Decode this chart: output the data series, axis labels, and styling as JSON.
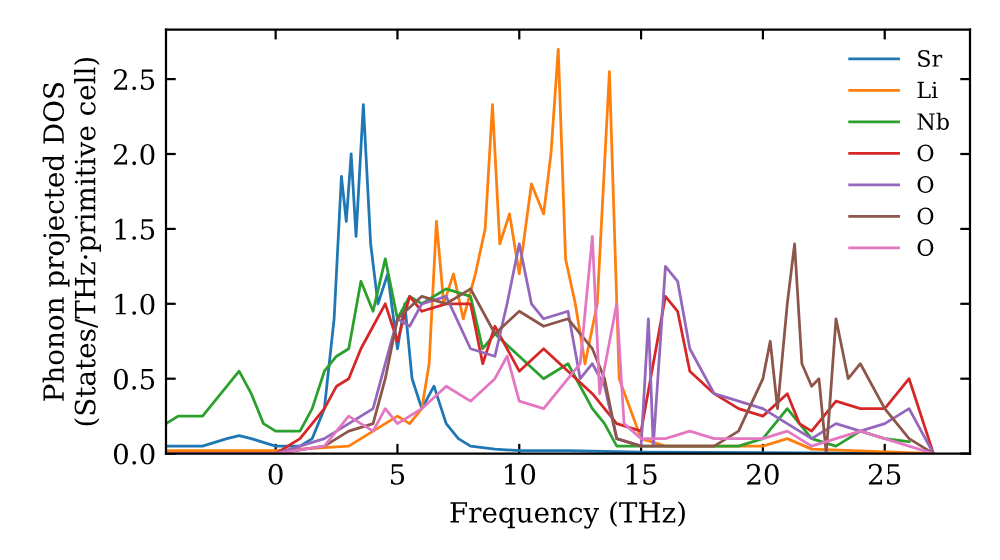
{
  "chart_data": {
    "type": "line",
    "xlabel": "Frequency (THz)",
    "ylabel": "Phonon projected DOS\n(States/THz·primitive cell)",
    "xlim": [
      -4.5,
      28.5
    ],
    "ylim": [
      0,
      2.83
    ],
    "xticks": [
      0,
      5,
      10,
      15,
      20,
      25
    ],
    "yticks": [
      {
        "value": 0,
        "label": "0.0"
      },
      {
        "value": 0.5,
        "label": "0.5"
      },
      {
        "value": 1,
        "label": "1.0"
      },
      {
        "value": 1.5,
        "label": "1.5"
      },
      {
        "value": 2,
        "label": "2.0"
      },
      {
        "value": 2.5,
        "label": "2.5"
      }
    ],
    "legend": "top right",
    "grid": false,
    "marker": "none",
    "line_style": "solid",
    "series": [
      {
        "name": "Sr",
        "color": "#1f77b4",
        "x": [
          -4.5,
          -3,
          -2,
          -1.5,
          -1,
          0,
          1,
          1.5,
          2,
          2.4,
          2.7,
          2.9,
          3.1,
          3.3,
          3.6,
          3.9,
          4.2,
          4.6,
          5,
          5.3,
          5.6,
          6,
          6.5,
          7,
          7.5,
          8,
          9,
          10,
          12,
          15,
          27
        ],
        "values": [
          0.05,
          0.05,
          0.1,
          0.12,
          0.1,
          0.05,
          0.05,
          0.1,
          0.3,
          0.9,
          1.85,
          1.55,
          2.0,
          1.45,
          2.33,
          1.4,
          1.0,
          1.2,
          0.7,
          1.0,
          0.5,
          0.3,
          0.45,
          0.2,
          0.1,
          0.05,
          0.03,
          0.02,
          0.02,
          0.01,
          0
        ]
      },
      {
        "name": "Li",
        "color": "#ff7f0e",
        "x": [
          -4.5,
          0,
          3,
          4,
          5,
          5.5,
          6,
          6.3,
          6.6,
          6.9,
          7.3,
          7.7,
          8.2,
          8.6,
          8.9,
          9.2,
          9.6,
          10,
          10.5,
          11,
          11.3,
          11.6,
          11.9,
          12.3,
          12.7,
          13.2,
          13.7,
          14.1,
          15,
          16,
          20,
          21,
          22,
          27
        ],
        "values": [
          0.02,
          0.02,
          0.05,
          0.15,
          0.25,
          0.2,
          0.3,
          0.6,
          1.55,
          1.0,
          1.2,
          0.9,
          1.2,
          1.5,
          2.33,
          1.4,
          1.6,
          1.2,
          1.8,
          1.6,
          2.0,
          2.7,
          1.3,
          1.0,
          0.6,
          1.0,
          2.55,
          0.5,
          0.1,
          0.05,
          0.05,
          0.1,
          0.03,
          0
        ]
      },
      {
        "name": "Nb",
        "color": "#2ca02c",
        "x": [
          -4.5,
          -4,
          -3,
          -2.5,
          -2,
          -1.5,
          -1,
          -0.5,
          0,
          1,
          1.5,
          2,
          2.5,
          3,
          3.5,
          4,
          4.5,
          5,
          5.5,
          6,
          7,
          8,
          8.5,
          9,
          10,
          11,
          12,
          13,
          13.5,
          14,
          15,
          19,
          20,
          21,
          22,
          23,
          24,
          25,
          26
        ],
        "values": [
          0.2,
          0.25,
          0.25,
          0.35,
          0.45,
          0.55,
          0.4,
          0.2,
          0.15,
          0.15,
          0.3,
          0.55,
          0.65,
          0.7,
          1.15,
          0.95,
          1.3,
          0.9,
          1.05,
          1.0,
          1.1,
          1.05,
          0.7,
          0.8,
          0.65,
          0.5,
          0.6,
          0.3,
          0.2,
          0.05,
          0.05,
          0.05,
          0.1,
          0.3,
          0.1,
          0.05,
          0.15,
          0.1,
          0.08
        ]
      },
      {
        "name": "O",
        "color": "#d62728",
        "x": [
          -4.5,
          0,
          1,
          2,
          2.5,
          3,
          3.5,
          4,
          4.5,
          5,
          5.5,
          6,
          7,
          8,
          8.5,
          9,
          10,
          11,
          12,
          13,
          14,
          15,
          16,
          16.5,
          17,
          18,
          19,
          20,
          21,
          21.5,
          22,
          23,
          24,
          25,
          26,
          27
        ],
        "values": [
          0,
          0,
          0.1,
          0.3,
          0.45,
          0.5,
          0.7,
          0.85,
          1.0,
          0.75,
          1.05,
          0.95,
          1.0,
          1.0,
          0.6,
          0.85,
          0.55,
          0.7,
          0.55,
          0.4,
          0.2,
          0.15,
          1.05,
          0.95,
          0.55,
          0.4,
          0.3,
          0.25,
          0.4,
          0.2,
          0.15,
          0.35,
          0.3,
          0.3,
          0.5,
          0
        ]
      },
      {
        "name": "O",
        "color": "#9467bd",
        "x": [
          -4.5,
          0,
          2,
          3,
          4,
          4.5,
          5,
          5.5,
          6,
          7,
          8,
          9,
          9.5,
          10,
          10.5,
          11,
          12,
          12.5,
          13,
          13.5,
          14,
          15,
          15.3,
          15.5,
          16,
          16.5,
          17,
          18,
          19,
          20,
          21,
          22,
          23,
          24,
          25,
          26,
          27
        ],
        "values": [
          0,
          0,
          0.1,
          0.2,
          0.3,
          0.6,
          0.9,
          0.85,
          1.0,
          1.05,
          0.7,
          0.65,
          1.0,
          1.4,
          1.0,
          0.9,
          0.95,
          0.5,
          0.6,
          0.45,
          0.1,
          0.05,
          0.9,
          0.05,
          1.25,
          1.15,
          0.7,
          0.4,
          0.35,
          0.3,
          0.2,
          0.1,
          0.2,
          0.15,
          0.2,
          0.3,
          0
        ]
      },
      {
        "name": "O",
        "color": "#8c564b",
        "x": [
          -4.5,
          0,
          2,
          3,
          4,
          4.5,
          5,
          6,
          7,
          8,
          9,
          10,
          11,
          12,
          13,
          13.5,
          14,
          15,
          16,
          18,
          19,
          20,
          20.3,
          20.6,
          21,
          21.3,
          21.6,
          22,
          22.3,
          22.6,
          23,
          23.5,
          24,
          25,
          26,
          27
        ],
        "values": [
          0,
          0,
          0.05,
          0.15,
          0.2,
          0.5,
          0.9,
          1.05,
          1.0,
          1.1,
          0.8,
          0.95,
          0.85,
          0.9,
          0.7,
          0.5,
          0.1,
          0.05,
          0.05,
          0.05,
          0.15,
          0.5,
          0.75,
          0.3,
          1.0,
          1.4,
          0.6,
          0.45,
          0.5,
          0.0,
          0.9,
          0.5,
          0.6,
          0.3,
          0.1,
          0
        ]
      },
      {
        "name": "O",
        "color": "#e377c2",
        "x": [
          -4.5,
          0,
          2,
          3,
          4,
          4.5,
          5,
          6,
          7,
          8,
          9,
          9.5,
          10,
          11,
          12,
          12.5,
          13,
          13.3,
          14,
          14.3,
          15,
          16,
          17,
          18,
          20,
          21,
          22,
          23,
          24,
          25,
          26,
          27
        ],
        "values": [
          0,
          0,
          0.05,
          0.25,
          0.15,
          0.3,
          0.2,
          0.3,
          0.45,
          0.35,
          0.5,
          0.65,
          0.35,
          0.3,
          0.5,
          0.6,
          1.45,
          0.4,
          1.0,
          0.2,
          0.1,
          0.1,
          0.15,
          0.1,
          0.1,
          0.15,
          0.05,
          0.1,
          0.15,
          0.1,
          0.05,
          0
        ]
      }
    ]
  }
}
